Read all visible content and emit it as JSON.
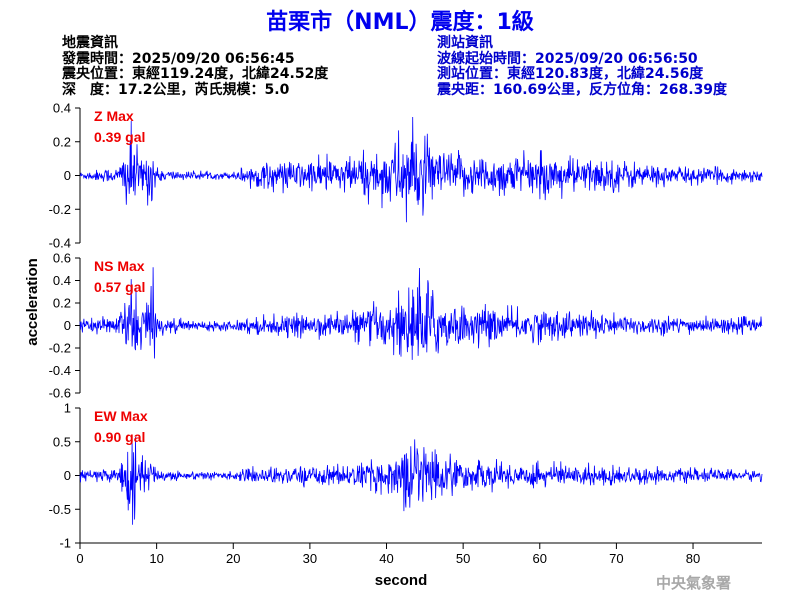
{
  "title": "苗栗市（NML）震度：1級",
  "quake_info": {
    "heading": "地震資訊",
    "time": "發震時間：2025/09/20 06:56:45",
    "epicenter": "震央位置：東經119.24度，北緯24.52度",
    "depth_mag": "深　度：17.2公里，芮氏規模：5.0"
  },
  "station_info": {
    "heading": "測站資訊",
    "wave_start": "波線起始時間：2025/09/20 06:56:50",
    "location": "測站位置：東經120.83度，北緯24.56度",
    "distance": "震央距：160.69公里，反方位角：268.39度"
  },
  "agency": "中央氣象署",
  "colors": {
    "title": "#0000ee",
    "trace": "#0000ff",
    "max_label": "#ee0000",
    "station": "#0000cc"
  },
  "chart_data": {
    "type": "line",
    "xlabel": "second",
    "ylabel": "acceleration",
    "xlim": [
      0,
      89
    ],
    "xticks": [
      0,
      10,
      20,
      30,
      40,
      50,
      60,
      70,
      80
    ],
    "panels": [
      {
        "name": "Z",
        "max_label": "Z Max",
        "max_value_label": "0.39 gal",
        "ylim": [
          -0.4,
          0.4
        ],
        "yticks": [
          -0.4,
          -0.2,
          0,
          0.2,
          0.4
        ],
        "ytick_labels": [
          "-0.4",
          "-0.2",
          "0",
          "0.2",
          "0.4"
        ],
        "envelope": {
          "t": [
            0,
            5,
            6,
            6.5,
            8,
            9.5,
            10,
            14,
            20,
            21,
            23,
            30,
            35,
            40,
            43,
            44,
            47,
            50,
            55,
            60,
            65,
            70,
            75,
            80,
            89
          ],
          "amp": [
            0.03,
            0.06,
            0.25,
            0.35,
            0.12,
            0.25,
            0.05,
            0.03,
            0.025,
            0.06,
            0.09,
            0.12,
            0.14,
            0.2,
            0.38,
            0.3,
            0.18,
            0.16,
            0.15,
            0.15,
            0.13,
            0.12,
            0.08,
            0.06,
            0.05
          ]
        }
      },
      {
        "name": "NS",
        "max_label": "NS Max",
        "max_value_label": "0.57 gal",
        "ylim": [
          -0.6,
          0.6
        ],
        "yticks": [
          -0.6,
          -0.4,
          -0.2,
          0,
          0.2,
          0.4,
          0.6
        ],
        "ytick_labels": [
          "-0.6",
          "-0.4",
          "-0.2",
          "0",
          "0.2",
          "0.4",
          "0.6"
        ],
        "envelope": {
          "t": [
            0,
            5,
            6,
            7,
            8,
            9.5,
            10,
            14,
            20,
            21,
            23,
            30,
            35,
            40,
            43,
            44.5,
            47,
            50,
            55,
            60,
            65,
            70,
            75,
            80,
            89
          ],
          "amp": [
            0.06,
            0.1,
            0.35,
            0.5,
            0.25,
            0.55,
            0.1,
            0.06,
            0.05,
            0.08,
            0.1,
            0.12,
            0.15,
            0.25,
            0.45,
            0.57,
            0.32,
            0.22,
            0.18,
            0.18,
            0.15,
            0.12,
            0.1,
            0.09,
            0.08
          ]
        }
      },
      {
        "name": "EW",
        "max_label": "EW Max",
        "max_value_label": "0.90 gal",
        "ylim": [
          -1,
          1
        ],
        "yticks": [
          -1,
          -0.5,
          0,
          0.5,
          1
        ],
        "ytick_labels": [
          "-1",
          "-0.5",
          "0",
          "0.5",
          "1"
        ],
        "envelope": {
          "t": [
            0,
            5,
            6,
            6.5,
            8,
            9.5,
            10,
            14,
            20,
            21,
            23,
            30,
            35,
            40,
            43,
            44,
            47,
            50,
            55,
            60,
            65,
            70,
            75,
            80,
            89
          ],
          "amp": [
            0.1,
            0.15,
            0.5,
            0.9,
            0.3,
            0.3,
            0.12,
            0.08,
            0.07,
            0.1,
            0.15,
            0.18,
            0.2,
            0.3,
            0.6,
            0.9,
            0.4,
            0.28,
            0.24,
            0.22,
            0.2,
            0.18,
            0.14,
            0.12,
            0.1
          ]
        }
      }
    ]
  }
}
